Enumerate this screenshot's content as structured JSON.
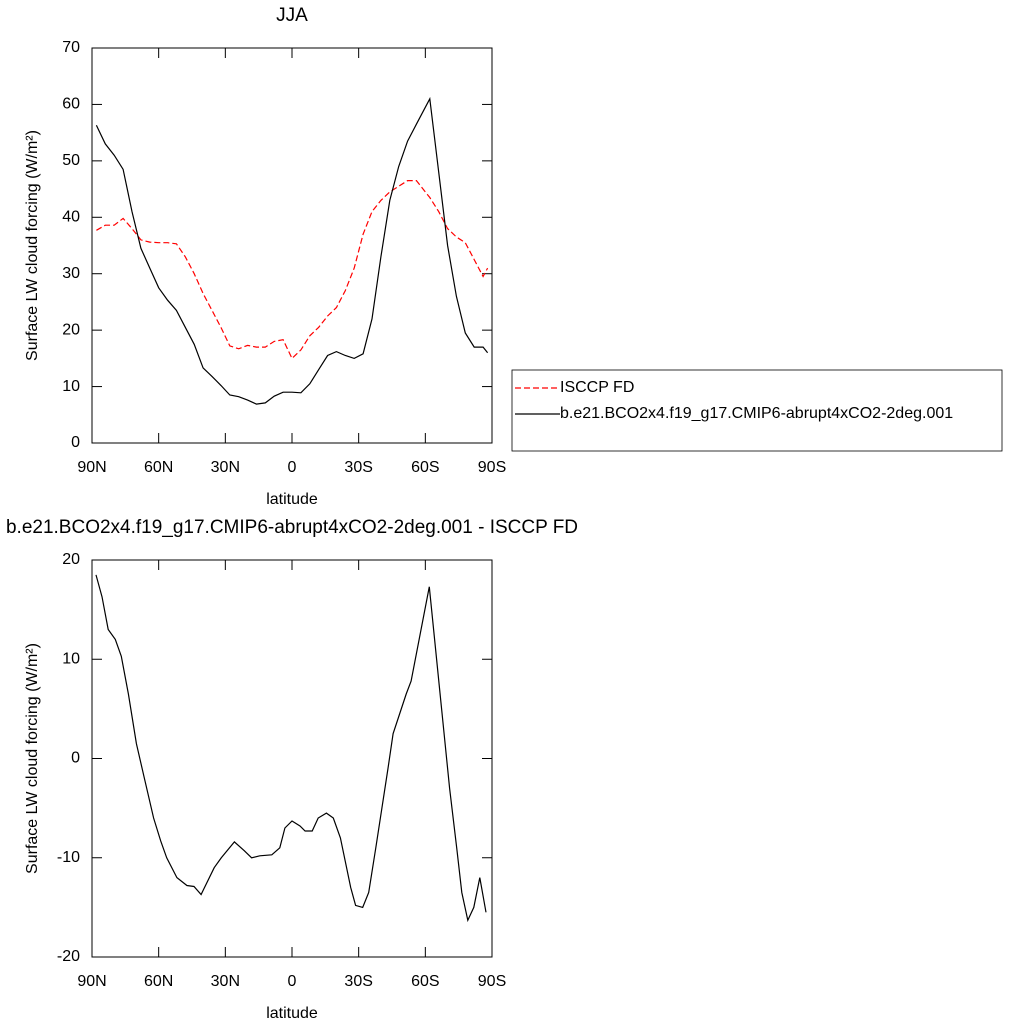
{
  "chart_data": [
    {
      "type": "line",
      "title": "JJA",
      "xlabel": "latitude",
      "ylabel": "Surface LW cloud forcing (W/m²)",
      "x": [
        88,
        84,
        80,
        76,
        72,
        68,
        64,
        60,
        56,
        52,
        48,
        44,
        40,
        36,
        32,
        28,
        24,
        20,
        16,
        12,
        8,
        4,
        0,
        -4,
        -8,
        -12,
        -16,
        -20,
        -24,
        -28,
        -32,
        -36,
        -40,
        -44,
        -48,
        -52,
        -56,
        -60,
        -62,
        -66,
        -70,
        -74,
        -78,
        -82,
        -86,
        -88
      ],
      "xlim": [
        90,
        -90
      ],
      "xticks": [
        {
          "value": 90,
          "label": "90N"
        },
        {
          "value": 60,
          "label": "60N"
        },
        {
          "value": 30,
          "label": "30N"
        },
        0,
        {
          "value": -30,
          "label": "30S"
        },
        {
          "value": -60,
          "label": "60S"
        },
        {
          "value": -90,
          "label": "90S"
        }
      ],
      "ylim": [
        0,
        70
      ],
      "yticks": [
        0,
        10,
        20,
        30,
        40,
        50,
        60,
        70
      ],
      "legend": "right",
      "series": [
        {
          "name": "ISCCP FD",
          "color": "#ff0000",
          "dash": true,
          "values": [
            37.7,
            38.6,
            38.6,
            39.8,
            38,
            36,
            35.6,
            35.5,
            35.5,
            35.3,
            33,
            30,
            26.5,
            23.5,
            20.5,
            17.2,
            16.7,
            17.3,
            17,
            17,
            18,
            18.3,
            15,
            16.5,
            19,
            20.5,
            22.5,
            24,
            27,
            31,
            37,
            41,
            43,
            44.5,
            45.5,
            46.5,
            46.5,
            44.5,
            43.5,
            41,
            38,
            36.5,
            35.5,
            32.5,
            29.5,
            31
          ]
        },
        {
          "name": "b.e21.BCO2x4.f19_g17.CMIP6-abrupt4xCO2-2deg.001",
          "color": "#000000",
          "dash": false,
          "values": [
            56.3,
            53,
            51,
            48.5,
            41,
            34.5,
            31,
            27.5,
            25.3,
            23.5,
            20.5,
            17.5,
            13.3,
            11.8,
            10.2,
            8.5,
            8.2,
            7.6,
            6.9,
            7.1,
            8.3,
            9,
            9,
            8.9,
            10.5,
            13,
            15.5,
            16.2,
            15.5,
            15,
            15.8,
            22,
            33,
            43,
            49,
            53.5,
            56.5,
            59.5,
            61,
            48,
            35,
            26,
            19.5,
            17,
            17,
            16
          ]
        }
      ]
    },
    {
      "type": "line",
      "title": "b.e21.BCO2x4.f19_g17.CMIP6-abrupt4xCO2-2deg.001 - ISCCP FD",
      "xlabel": "latitude",
      "ylabel": "Surface LW cloud forcing (W/m²)",
      "x": [
        88.2,
        85.5,
        82.7,
        79.5,
        76.8,
        73.6,
        70,
        66.4,
        62.3,
        59.1,
        56.4,
        51.8,
        47.3,
        44.1,
        40.9,
        35,
        31.8,
        25.9,
        21.4,
        18.2,
        14.5,
        9.1,
        5.5,
        3.2,
        0,
        -3.6,
        -5.9,
        -9.1,
        -11.8,
        -15.5,
        -18.6,
        -21.8,
        -26.4,
        -28.6,
        -31.8,
        -34.5,
        -37.7,
        -43.2,
        -45.5,
        -51.4,
        -53.6,
        -61.8,
        -67.3,
        -70.9,
        -74.1,
        -76.4,
        -79.1,
        -81.8,
        -84.5,
        -87.3
      ],
      "xlim": [
        90,
        -90
      ],
      "xticks": [
        {
          "value": 90,
          "label": "90N"
        },
        {
          "value": 60,
          "label": "60N"
        },
        {
          "value": 30,
          "label": "30N"
        },
        0,
        {
          "value": -30,
          "label": "30S"
        },
        {
          "value": -60,
          "label": "60S"
        },
        {
          "value": -90,
          "label": "90S"
        }
      ],
      "ylim": [
        -20,
        20
      ],
      "yticks": [
        -20,
        -10,
        0,
        10,
        20
      ],
      "series": [
        {
          "color": "#000000",
          "dash": false,
          "values": [
            18.5,
            16.3,
            13,
            12,
            10.3,
            6.5,
            1.5,
            -2,
            -6,
            -8.3,
            -10,
            -12,
            -12.8,
            -12.9,
            -13.7,
            -11,
            -10,
            -8.4,
            -9.3,
            -10,
            -9.8,
            -9.7,
            -9,
            -7,
            -6.3,
            -6.8,
            -7.3,
            -7.3,
            -6,
            -5.5,
            -6,
            -8,
            -13,
            -14.8,
            -15,
            -13.5,
            -9,
            -1,
            2.5,
            6.5,
            7.8,
            17.3,
            5,
            -3,
            -9,
            -13.5,
            -16.3,
            -15,
            -12,
            -15.5
          ]
        }
      ]
    }
  ]
}
